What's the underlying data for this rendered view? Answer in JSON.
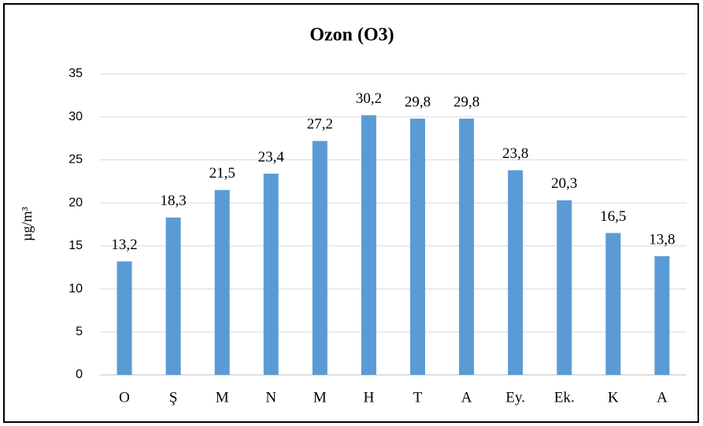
{
  "chart_data": {
    "type": "bar",
    "title": "Ozon (O3)",
    "y_label": "µg/m³",
    "categories": [
      "O",
      "Ş",
      "M",
      "N",
      "M",
      "H",
      "T",
      "A",
      "Ey.",
      "Ek.",
      "K",
      "A"
    ],
    "values": [
      13.2,
      18.3,
      21.5,
      23.4,
      27.2,
      30.2,
      29.8,
      29.8,
      23.8,
      20.3,
      16.5,
      13.8
    ],
    "value_labels": [
      "13,2",
      "18,3",
      "21,5",
      "23,4",
      "27,2",
      "30,2",
      "29,8",
      "29,8",
      "23,8",
      "20,3",
      "16,5",
      "13,8"
    ],
    "color": "#5b9bd5",
    "ylim": [
      0,
      35
    ],
    "yticks": [
      0,
      5,
      10,
      15,
      20,
      25,
      30,
      35
    ],
    "grid": true
  }
}
